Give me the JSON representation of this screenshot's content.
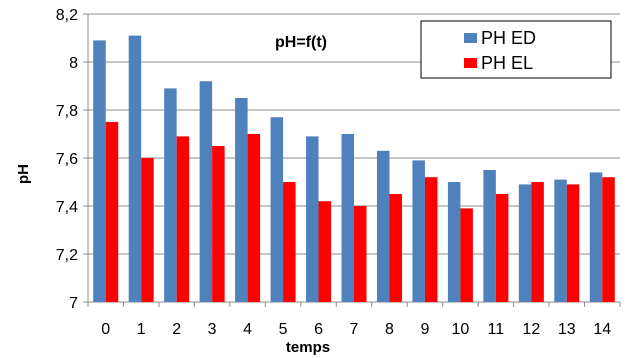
{
  "chart_data": {
    "type": "bar",
    "title": "pH=f(t)",
    "xlabel": "temps",
    "ylabel": "pH",
    "categories": [
      "0",
      "1",
      "2",
      "3",
      "4",
      "5",
      "6",
      "7",
      "8",
      "9",
      "10",
      "11",
      "12",
      "13",
      "14"
    ],
    "series": [
      {
        "name": "PH ED",
        "color": "#4f81bd",
        "values": [
          8.09,
          8.11,
          7.89,
          7.92,
          7.85,
          7.77,
          7.69,
          7.7,
          7.63,
          7.59,
          7.5,
          7.55,
          7.49,
          7.51,
          7.54
        ]
      },
      {
        "name": "PH EL",
        "color": "#ff0000",
        "values": [
          7.75,
          7.6,
          7.69,
          7.65,
          7.7,
          7.5,
          7.42,
          7.4,
          7.45,
          7.52,
          7.39,
          7.45,
          7.5,
          7.49,
          7.52
        ]
      }
    ],
    "ylim": [
      7,
      8.2
    ],
    "yticks": [
      "7",
      "7,2",
      "7,4",
      "7,6",
      "7,8",
      "8",
      "8,2"
    ],
    "ytick_values": [
      7,
      7.2,
      7.4,
      7.6,
      7.8,
      8,
      8.2
    ],
    "grid": true,
    "legend_position": "top-right"
  }
}
